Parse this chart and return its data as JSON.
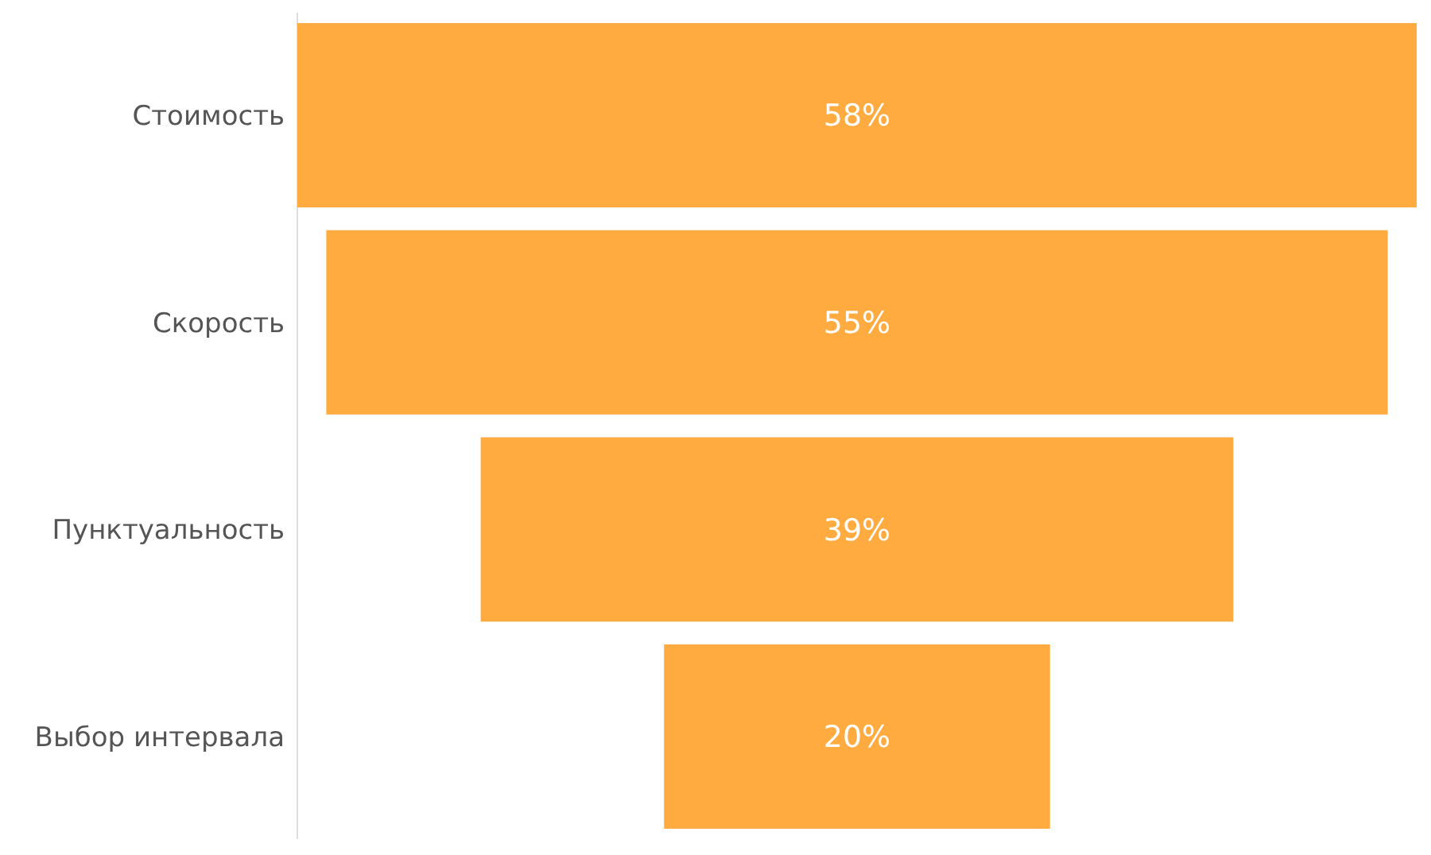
{
  "chart_data": {
    "type": "other",
    "categories": [
      "Стоимость",
      "Скорость",
      "Пунктуальность",
      "Выбор интервала"
    ],
    "values": [
      58,
      55,
      39,
      20
    ],
    "value_labels": [
      "58%",
      "55%",
      "39%",
      "20%"
    ],
    "color": "#ffab40"
  }
}
